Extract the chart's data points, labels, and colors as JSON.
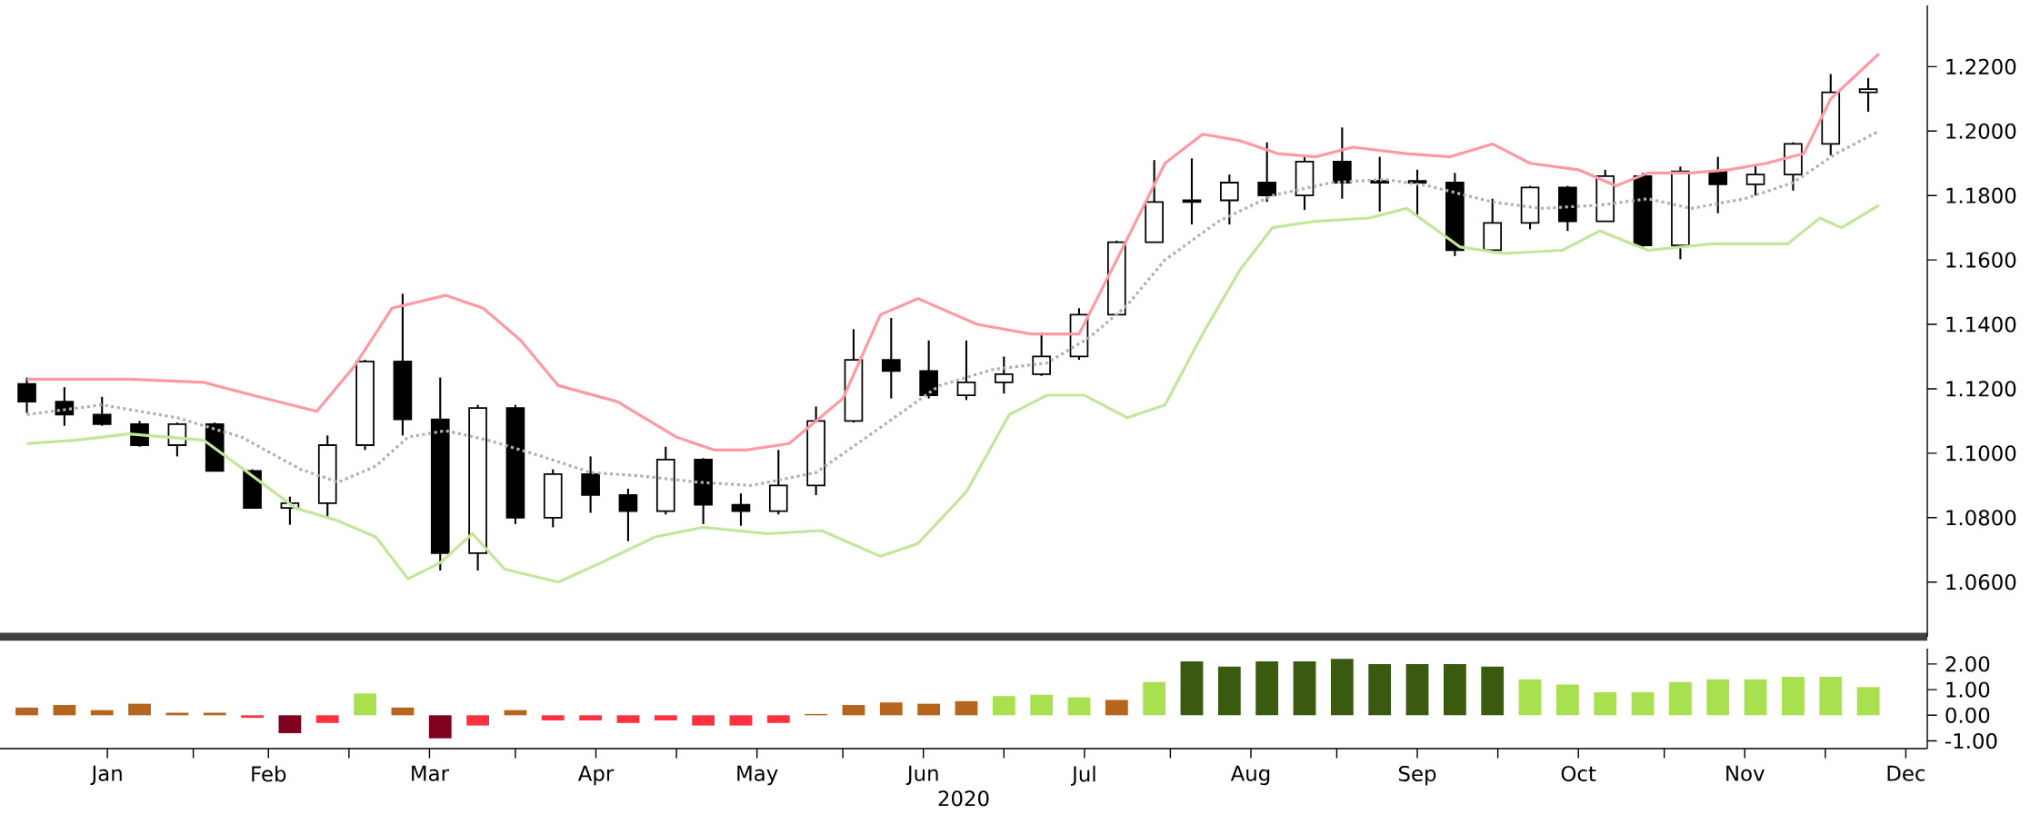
{
  "chart_data": [
    {
      "type": "candlestick",
      "tick_labels": "y",
      "x": [
        "2020-01-01",
        "2020-01-08",
        "2020-01-15",
        "2020-01-22",
        "2020-01-29",
        "2020-02-05",
        "2020-02-12",
        "2020-02-19",
        "2020-02-26",
        "2020-03-04",
        "2020-03-11",
        "2020-03-18",
        "2020-03-25",
        "2020-04-01",
        "2020-04-08",
        "2020-04-15",
        "2020-04-22",
        "2020-04-29",
        "2020-05-06",
        "2020-05-13",
        "2020-05-20",
        "2020-05-27",
        "2020-06-03",
        "2020-06-10",
        "2020-06-17",
        "2020-06-24",
        "2020-07-01",
        "2020-07-08",
        "2020-07-15",
        "2020-07-22",
        "2020-07-29",
        "2020-08-05",
        "2020-08-12",
        "2020-08-19",
        "2020-08-26",
        "2020-09-02",
        "2020-09-09",
        "2020-09-16",
        "2020-09-23",
        "2020-09-30",
        "2020-10-07",
        "2020-10-14",
        "2020-10-21",
        "2020-10-28",
        "2020-11-04",
        "2020-11-11",
        "2020-11-18",
        "2020-11-25",
        "2020-12-02",
        "2020-12-09"
      ],
      "ohlc": [
        [
          1.1215,
          1.1235,
          1.1125,
          1.116
        ],
        [
          1.116,
          1.1205,
          1.1085,
          1.112
        ],
        [
          1.112,
          1.1175,
          1.1085,
          1.109
        ],
        [
          1.109,
          1.11,
          1.102,
          1.1025
        ],
        [
          1.1025,
          1.1095,
          1.099,
          1.109
        ],
        [
          1.109,
          1.1095,
          1.0945,
          1.0945
        ],
        [
          1.0945,
          1.095,
          1.083,
          1.083
        ],
        [
          1.083,
          1.0865,
          1.0778,
          1.0845
        ],
        [
          1.0845,
          1.1055,
          1.08,
          1.1025
        ],
        [
          1.1025,
          1.129,
          1.101,
          1.1285
        ],
        [
          1.1285,
          1.1495,
          1.1055,
          1.1105
        ],
        [
          1.1105,
          1.1235,
          1.0636,
          1.069
        ],
        [
          1.069,
          1.115,
          1.0636,
          1.114
        ],
        [
          1.114,
          1.115,
          1.078,
          1.08
        ],
        [
          1.08,
          1.095,
          1.077,
          1.0935
        ],
        [
          1.0935,
          1.099,
          1.0815,
          1.087
        ],
        [
          1.087,
          1.089,
          1.0727,
          1.082
        ],
        [
          1.082,
          1.102,
          1.081,
          1.098
        ],
        [
          1.098,
          1.0985,
          1.078,
          1.084
        ],
        [
          1.084,
          1.0875,
          1.0775,
          1.082
        ],
        [
          1.082,
          1.101,
          1.081,
          1.09
        ],
        [
          1.09,
          1.1145,
          1.087,
          1.11
        ],
        [
          1.11,
          1.1385,
          1.1095,
          1.129
        ],
        [
          1.129,
          1.142,
          1.117,
          1.1255
        ],
        [
          1.1255,
          1.135,
          1.117,
          1.118
        ],
        [
          1.118,
          1.135,
          1.1165,
          1.122
        ],
        [
          1.122,
          1.13,
          1.1185,
          1.1245
        ],
        [
          1.1245,
          1.1375,
          1.124,
          1.13
        ],
        [
          1.13,
          1.145,
          1.129,
          1.143
        ],
        [
          1.143,
          1.166,
          1.143,
          1.1655
        ],
        [
          1.1655,
          1.191,
          1.1655,
          1.178
        ],
        [
          1.178,
          1.1915,
          1.171,
          1.1785
        ],
        [
          1.1785,
          1.1865,
          1.171,
          1.184
        ],
        [
          1.184,
          1.1965,
          1.178,
          1.18
        ],
        [
          1.18,
          1.192,
          1.1755,
          1.1905
        ],
        [
          1.1905,
          1.2011,
          1.179,
          1.184
        ],
        [
          1.184,
          1.192,
          1.175,
          1.1845
        ],
        [
          1.1845,
          1.188,
          1.1735,
          1.184
        ],
        [
          1.184,
          1.187,
          1.1612,
          1.163
        ],
        [
          1.163,
          1.179,
          1.163,
          1.1715
        ],
        [
          1.1715,
          1.183,
          1.1695,
          1.1825
        ],
        [
          1.1825,
          1.183,
          1.169,
          1.172
        ],
        [
          1.172,
          1.188,
          1.172,
          1.186
        ],
        [
          1.186,
          1.187,
          1.164,
          1.1645
        ],
        [
          1.1645,
          1.189,
          1.1602,
          1.1875
        ],
        [
          1.1875,
          1.192,
          1.1745,
          1.1835
        ],
        [
          1.1835,
          1.1895,
          1.18,
          1.1865
        ],
        [
          1.1865,
          1.1965,
          1.1815,
          1.196
        ],
        [
          1.196,
          1.2177,
          1.1925,
          1.212
        ],
        [
          1.212,
          1.2165,
          1.206,
          1.213
        ]
      ],
      "series": [
        {
          "type": "line",
          "color": "#ff9aa2",
          "line_style": "solid",
          "x": [
            "2020-01-01",
            "2020-01-20",
            "2020-02-03",
            "2020-02-12",
            "2020-02-24",
            "2020-03-02",
            "2020-03-09",
            "2020-03-19",
            "2020-03-26",
            "2020-04-02",
            "2020-04-09",
            "2020-04-20",
            "2020-05-01",
            "2020-05-08",
            "2020-05-14",
            "2020-05-22",
            "2020-06-01",
            "2020-06-08",
            "2020-06-15",
            "2020-06-26",
            "2020-07-06",
            "2020-07-15",
            "2020-07-22",
            "2020-07-31",
            "2020-08-07",
            "2020-08-14",
            "2020-08-21",
            "2020-08-28",
            "2020-09-04",
            "2020-09-14",
            "2020-09-22",
            "2020-09-30",
            "2020-10-07",
            "2020-10-16",
            "2020-10-23",
            "2020-10-29",
            "2020-11-06",
            "2020-11-13",
            "2020-11-20",
            "2020-11-27",
            "2020-12-02",
            "2020-12-11"
          ],
          "values": [
            1.123,
            1.123,
            1.122,
            1.118,
            1.113,
            1.127,
            1.145,
            1.149,
            1.145,
            1.135,
            1.121,
            1.116,
            1.105,
            1.101,
            1.101,
            1.103,
            1.117,
            1.143,
            1.148,
            1.14,
            1.137,
            1.137,
            1.16,
            1.19,
            1.199,
            1.197,
            1.193,
            1.192,
            1.195,
            1.193,
            1.192,
            1.196,
            1.19,
            1.188,
            1.183,
            1.187,
            1.187,
            1.188,
            1.19,
            1.193,
            1.21,
            1.224
          ]
        },
        {
          "type": "line",
          "color": "#b0b0b0",
          "line_style": "dotted",
          "x": [
            "2020-01-01",
            "2020-01-15",
            "2020-01-29",
            "2020-02-10",
            "2020-02-21",
            "2020-02-28",
            "2020-03-06",
            "2020-03-12",
            "2020-03-19",
            "2020-03-27",
            "2020-04-06",
            "2020-04-15",
            "2020-04-24",
            "2020-05-05",
            "2020-05-15",
            "2020-05-27",
            "2020-06-08",
            "2020-06-19",
            "2020-06-29",
            "2020-07-09",
            "2020-07-17",
            "2020-07-24",
            "2020-07-31",
            "2020-08-10",
            "2020-08-20",
            "2020-08-31",
            "2020-09-10",
            "2020-09-18",
            "2020-09-30",
            "2020-10-09",
            "2020-10-20",
            "2020-10-29",
            "2020-11-06",
            "2020-11-16",
            "2020-11-25",
            "2020-12-03",
            "2020-12-11"
          ],
          "values": [
            1.112,
            1.115,
            1.111,
            1.105,
            1.095,
            1.091,
            1.096,
            1.105,
            1.107,
            1.104,
            1.099,
            1.094,
            1.093,
            1.091,
            1.09,
            1.094,
            1.108,
            1.121,
            1.126,
            1.128,
            1.136,
            1.146,
            1.16,
            1.172,
            1.18,
            1.184,
            1.185,
            1.183,
            1.178,
            1.176,
            1.177,
            1.179,
            1.176,
            1.179,
            1.184,
            1.193,
            1.2
          ]
        },
        {
          "type": "line",
          "color": "#c2e69a",
          "line_style": "solid",
          "x": [
            "2020-01-01",
            "2020-01-10",
            "2020-01-20",
            "2020-02-03",
            "2020-02-12",
            "2020-02-20",
            "2020-02-28",
            "2020-03-06",
            "2020-03-12",
            "2020-03-18",
            "2020-03-24",
            "2020-03-30",
            "2020-04-09",
            "2020-04-17",
            "2020-04-27",
            "2020-05-06",
            "2020-05-18",
            "2020-05-28",
            "2020-06-08",
            "2020-06-15",
            "2020-06-24",
            "2020-07-02",
            "2020-07-09",
            "2020-07-16",
            "2020-07-24",
            "2020-07-31",
            "2020-08-07",
            "2020-08-14",
            "2020-08-20",
            "2020-08-28",
            "2020-09-07",
            "2020-09-14",
            "2020-09-24",
            "2020-10-02",
            "2020-10-13",
            "2020-10-20",
            "2020-10-29",
            "2020-11-10",
            "2020-11-24",
            "2020-11-30",
            "2020-12-04",
            "2020-12-11"
          ],
          "values": [
            1.103,
            1.104,
            1.106,
            1.104,
            1.093,
            1.083,
            1.079,
            1.074,
            1.061,
            1.066,
            1.075,
            1.064,
            1.06,
            1.066,
            1.074,
            1.077,
            1.075,
            1.076,
            1.068,
            1.072,
            1.088,
            1.112,
            1.118,
            1.118,
            1.111,
            1.115,
            1.137,
            1.157,
            1.17,
            1.172,
            1.173,
            1.176,
            1.164,
            1.162,
            1.163,
            1.169,
            1.163,
            1.165,
            1.165,
            1.173,
            1.17,
            1.177
          ]
        }
      ],
      "xlim": [
        "2019-12-27",
        "2020-12-20"
      ],
      "ylim": [
        1.043,
        1.239
      ],
      "yticks": [
        {
          "value": 1.06,
          "label": "1.0600"
        },
        {
          "value": 1.08,
          "label": "1.0800"
        },
        {
          "value": 1.1,
          "label": "1.1000"
        },
        {
          "value": 1.12,
          "label": "1.1200"
        },
        {
          "value": 1.14,
          "label": "1.1400"
        },
        {
          "value": 1.16,
          "label": "1.1600"
        },
        {
          "value": 1.18,
          "label": "1.1800"
        },
        {
          "value": 1.2,
          "label": "1.2000"
        },
        {
          "value": 1.22,
          "label": "1.2200"
        }
      ]
    },
    {
      "type": "bar",
      "xlabel": "2020",
      "x": [
        "2020-01-01",
        "2020-01-08",
        "2020-01-15",
        "2020-01-22",
        "2020-01-29",
        "2020-02-05",
        "2020-02-12",
        "2020-02-19",
        "2020-02-26",
        "2020-03-04",
        "2020-03-11",
        "2020-03-18",
        "2020-03-25",
        "2020-04-01",
        "2020-04-08",
        "2020-04-15",
        "2020-04-22",
        "2020-04-29",
        "2020-05-06",
        "2020-05-13",
        "2020-05-20",
        "2020-05-27",
        "2020-06-03",
        "2020-06-10",
        "2020-06-17",
        "2020-06-24",
        "2020-07-01",
        "2020-07-08",
        "2020-07-15",
        "2020-07-22",
        "2020-07-29",
        "2020-08-05",
        "2020-08-12",
        "2020-08-19",
        "2020-08-26",
        "2020-09-02",
        "2020-09-09",
        "2020-09-16",
        "2020-09-23",
        "2020-09-30",
        "2020-10-07",
        "2020-10-14",
        "2020-10-21",
        "2020-10-28",
        "2020-11-04",
        "2020-11-11",
        "2020-11-18",
        "2020-11-25",
        "2020-12-02",
        "2020-12-09"
      ],
      "values": [
        0.3,
        0.4,
        0.2,
        0.45,
        0.1,
        0.1,
        -0.1,
        -0.7,
        -0.3,
        0.85,
        0.3,
        -0.9,
        -0.4,
        0.2,
        -0.2,
        -0.2,
        -0.3,
        -0.2,
        -0.4,
        -0.4,
        -0.3,
        0.05,
        0.4,
        0.5,
        0.45,
        0.55,
        0.75,
        0.8,
        0.7,
        0.6,
        1.3,
        2.1,
        1.9,
        2.1,
        2.1,
        2.2,
        2.0,
        2.0,
        2.0,
        1.9,
        1.4,
        1.2,
        0.9,
        0.9,
        1.3,
        1.4,
        1.4,
        1.5,
        1.5,
        1.1
      ],
      "colors": [
        "#b5651d",
        "#b5651d",
        "#b5651d",
        "#b5651d",
        "#b5651d",
        "#b5651d",
        "#ff3040",
        "#800020",
        "#ff3040",
        "#a8e050",
        "#b5651d",
        "#800020",
        "#ff3040",
        "#b5651d",
        "#ff3040",
        "#ff3040",
        "#ff3040",
        "#ff3040",
        "#ff3040",
        "#ff3040",
        "#ff3040",
        "#b5651d",
        "#b5651d",
        "#b5651d",
        "#b5651d",
        "#b5651d",
        "#a8e050",
        "#a8e050",
        "#a8e050",
        "#b5651d",
        "#a8e050",
        "#3a5a10",
        "#3a5a10",
        "#3a5a10",
        "#3a5a10",
        "#3a5a10",
        "#3a5a10",
        "#3a5a10",
        "#3a5a10",
        "#3a5a10",
        "#a8e050",
        "#a8e050",
        "#a8e050",
        "#a8e050",
        "#a8e050",
        "#a8e050",
        "#a8e050",
        "#a8e050",
        "#a8e050",
        "#a8e050"
      ],
      "xlim": [
        "2019-12-27",
        "2020-12-20"
      ],
      "xticks": [
        {
          "value": "2020-01-16",
          "label": "Jan"
        },
        {
          "value": "2020-02-01",
          "label": null
        },
        {
          "value": "2020-02-15",
          "label": "Feb"
        },
        {
          "value": "2020-03-01",
          "label": null
        },
        {
          "value": "2020-03-16",
          "label": "Mar"
        },
        {
          "value": "2020-04-01",
          "label": null
        },
        {
          "value": "2020-04-16",
          "label": "Apr"
        },
        {
          "value": "2020-05-01",
          "label": null
        },
        {
          "value": "2020-05-16",
          "label": "May"
        },
        {
          "value": "2020-06-01",
          "label": null
        },
        {
          "value": "2020-06-16",
          "label": "Jun"
        },
        {
          "value": "2020-07-01",
          "label": null
        },
        {
          "value": "2020-07-16",
          "label": "Jul"
        },
        {
          "value": "2020-08-01",
          "label": null
        },
        {
          "value": "2020-08-16",
          "label": "Aug"
        },
        {
          "value": "2020-09-01",
          "label": null
        },
        {
          "value": "2020-09-16",
          "label": "Sep"
        },
        {
          "value": "2020-10-01",
          "label": null
        },
        {
          "value": "2020-10-16",
          "label": "Oct"
        },
        {
          "value": "2020-11-01",
          "label": null
        },
        {
          "value": "2020-11-16",
          "label": "Nov"
        },
        {
          "value": "2020-12-01",
          "label": null
        },
        {
          "value": "2020-12-16",
          "label": "Dec"
        }
      ],
      "ylim": [
        -1.3,
        2.6
      ],
      "yticks": [
        {
          "value": -1,
          "label": "-1.00"
        },
        {
          "value": 0,
          "label": "0.00"
        },
        {
          "value": 1,
          "label": "1.00"
        },
        {
          "value": 2,
          "label": "2.00"
        }
      ]
    }
  ]
}
